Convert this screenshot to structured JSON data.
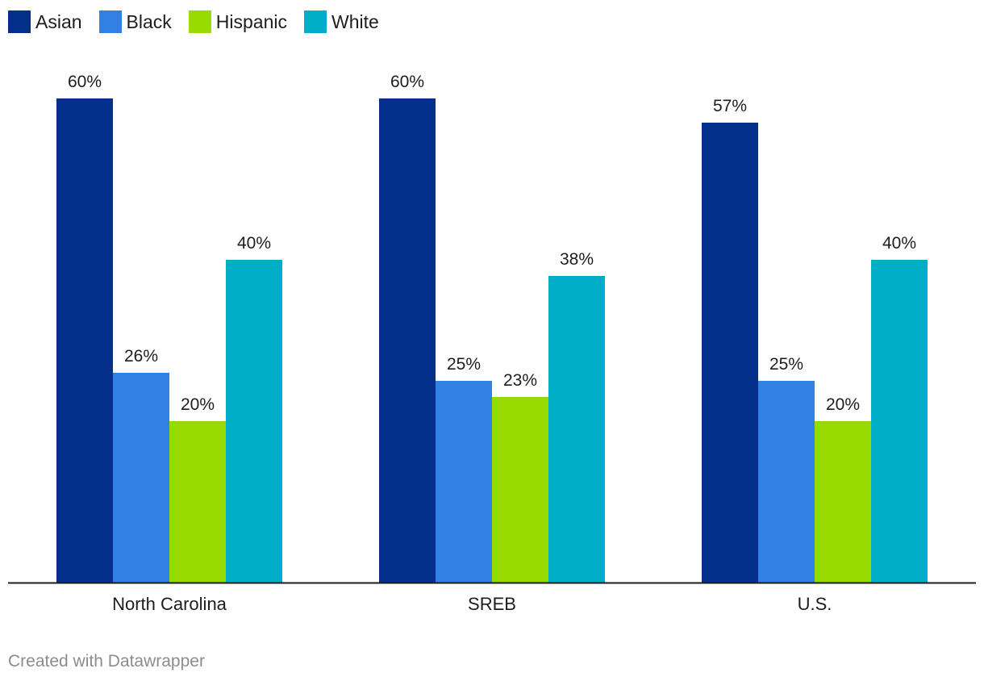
{
  "chart_data": {
    "type": "bar",
    "categories": [
      "North Carolina",
      "SREB",
      "U.S."
    ],
    "series": [
      {
        "name": "Asian",
        "color": "#04308b",
        "values": [
          60,
          60,
          57
        ]
      },
      {
        "name": "Black",
        "color": "#3081e3",
        "values": [
          26,
          25,
          25
        ]
      },
      {
        "name": "Hispanic",
        "color": "#98d900",
        "values": [
          20,
          23,
          20
        ]
      },
      {
        "name": "White",
        "color": "#00afc7",
        "values": [
          40,
          38,
          40
        ]
      }
    ],
    "value_suffix": "%",
    "ylim": [
      0,
      60
    ],
    "legend_position": "top-left",
    "grid": false
  },
  "footer": {
    "credit": "Created with Datawrapper"
  }
}
